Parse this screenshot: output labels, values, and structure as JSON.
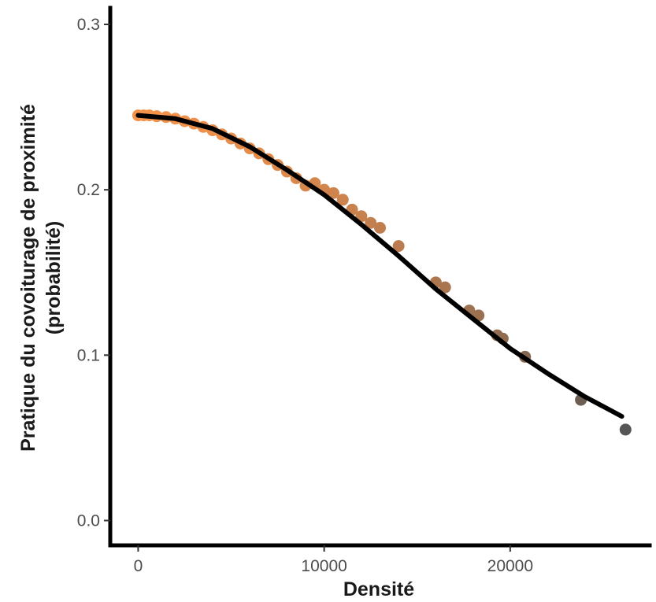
{
  "chart_data": {
    "type": "scatter",
    "xlabel": "Densité",
    "ylabel_lines": [
      "Pratique du covoiturage de proximité",
      "(probabilité)"
    ],
    "xlim": [
      -1500,
      27500
    ],
    "ylim": [
      -0.015,
      0.31
    ],
    "x_ticks": [
      {
        "value": 0,
        "label": "0"
      },
      {
        "value": 10000,
        "label": "10000"
      },
      {
        "value": 20000,
        "label": "20000"
      }
    ],
    "y_ticks": [
      {
        "value": 0.0,
        "label": "0.0"
      },
      {
        "value": 0.1,
        "label": "0.1"
      },
      {
        "value": 0.2,
        "label": "0.2"
      },
      {
        "value": 0.3,
        "label": "0.3"
      }
    ],
    "grid": false,
    "legend": "none",
    "colors": {
      "low_density_point": "#f4924a",
      "high_density_point": "#555555",
      "fit_line": "#000000",
      "axis": "#000000"
    },
    "points": {
      "x": [
        0,
        300,
        600,
        1000,
        1500,
        2000,
        2500,
        3000,
        3500,
        4000,
        4500,
        5000,
        5500,
        6000,
        6500,
        7000,
        7500,
        8000,
        8500,
        9000,
        9500,
        10000,
        10500,
        11000,
        11500,
        12000,
        12500,
        13000,
        14000,
        16000,
        16500,
        17800,
        18300,
        19300,
        19600,
        20800,
        23800,
        26200
      ],
      "y": [
        0.245,
        0.245,
        0.245,
        0.2445,
        0.244,
        0.243,
        0.2415,
        0.24,
        0.238,
        0.236,
        0.2335,
        0.231,
        0.228,
        0.225,
        0.222,
        0.2185,
        0.215,
        0.211,
        0.207,
        0.2025,
        0.204,
        0.2,
        0.198,
        0.194,
        0.188,
        0.184,
        0.18,
        0.177,
        0.166,
        0.144,
        0.141,
        0.127,
        0.124,
        0.112,
        0.11,
        0.099,
        0.073,
        0.055
      ]
    },
    "fit_line": {
      "x": [
        0,
        2000,
        4000,
        6000,
        8000,
        10000,
        12000,
        14000,
        16000,
        18000,
        20000,
        22000,
        24000,
        26000
      ],
      "y": [
        0.245,
        0.243,
        0.237,
        0.226,
        0.212,
        0.197,
        0.179,
        0.16,
        0.14,
        0.122,
        0.104,
        0.089,
        0.075,
        0.063
      ]
    }
  }
}
